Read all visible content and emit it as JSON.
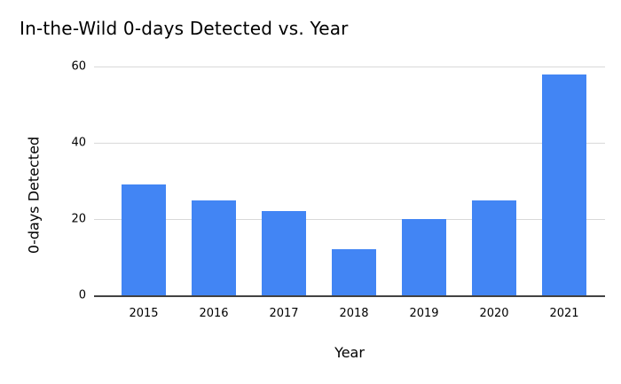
{
  "chart_data": {
    "type": "bar",
    "title": "In-the-Wild 0-days Detected vs. Year",
    "xlabel": "Year",
    "ylabel": "0-days Detected",
    "categories": [
      "2015",
      "2016",
      "2017",
      "2018",
      "2019",
      "2020",
      "2021"
    ],
    "values": [
      29,
      25,
      22,
      12,
      20,
      25,
      58
    ],
    "yticks": [
      0,
      20,
      40,
      60
    ],
    "ylim": [
      0,
      60
    ],
    "grid": true,
    "legend_position": "none",
    "bar_color": "#4285F4",
    "gridline_color": "#d9d9d9",
    "axis_line_color": "#424242",
    "text_color": "#000000",
    "background_color": "#ffffff"
  }
}
